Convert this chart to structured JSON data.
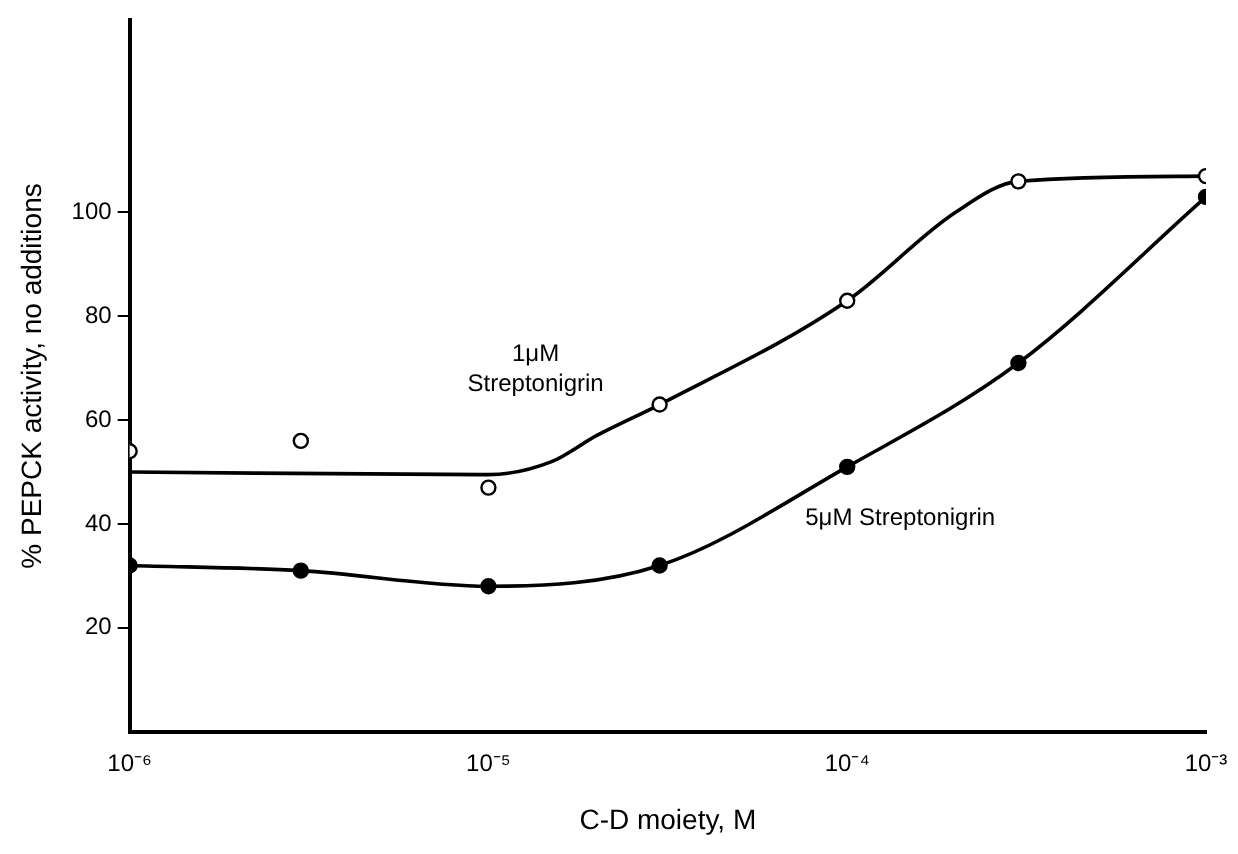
{
  "chart_data": {
    "type": "line",
    "xlabel": "C-D moiety, M",
    "ylabel": "% PEPCK activity, no additions",
    "log": "x",
    "xlim": [
      1e-06,
      0.001
    ],
    "ylim": [
      0,
      137
    ],
    "xticks": [
      {
        "value": 1e-06,
        "label": "10⁻⁶"
      },
      {
        "value": 1e-05,
        "label": "10⁻⁵"
      },
      {
        "value": 0.0001,
        "label": "10⁻⁴"
      },
      {
        "value": 0.001,
        "label": "10⁻³"
      }
    ],
    "yticks": [
      20,
      40,
      60,
      80,
      100
    ],
    "grid": false,
    "legend": false,
    "series": [
      {
        "name": "1μM Streptonigrin",
        "type": "scatter",
        "marker": "circle",
        "color": "#ffffff",
        "x": [
          1e-06,
          3e-06,
          1e-05,
          3e-05,
          0.0001,
          0.0003,
          0.001
        ],
        "values": [
          54,
          56,
          47,
          63,
          83,
          106,
          107
        ]
      },
      {
        "marker": "none",
        "color": "#000000",
        "x": [
          1e-06,
          1e-05,
          1.5e-05,
          2e-05,
          3e-05,
          0.0001,
          0.0002,
          0.0003,
          0.001
        ],
        "values": [
          50,
          49.5,
          52,
          57,
          63,
          83,
          100,
          106,
          107
        ]
      },
      {
        "name": "5μM Streptonigrin",
        "marker": "circle",
        "color": "#000000",
        "x": [
          1e-06,
          3e-06,
          1e-05,
          3e-05,
          0.0001,
          0.0003,
          0.001
        ],
        "values": [
          32,
          31,
          28,
          32,
          51,
          71,
          103
        ]
      }
    ]
  }
}
